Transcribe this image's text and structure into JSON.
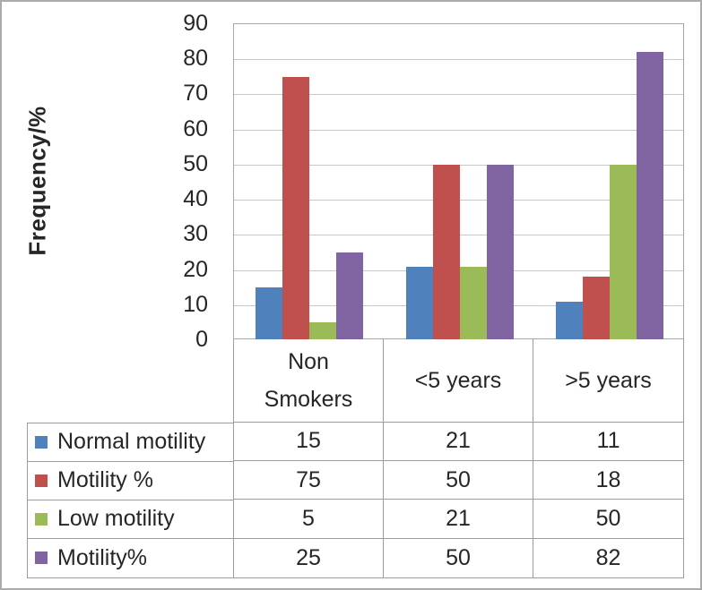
{
  "chart_data": {
    "type": "bar",
    "title": "",
    "xlabel": "",
    "ylabel": "Frequency/%",
    "categories": [
      "Non Smokers",
      "<5 years",
      ">5 years"
    ],
    "series": [
      {
        "name": "Normal motility",
        "color": "#4F81BD",
        "values": [
          15,
          21,
          11
        ]
      },
      {
        "name": "Motility %",
        "color": "#C0504D",
        "values": [
          75,
          50,
          18
        ]
      },
      {
        "name": "Low motility",
        "color": "#9BBB59",
        "values": [
          5,
          21,
          50
        ]
      },
      {
        "name": "Motility%",
        "color": "#8064A2",
        "values": [
          25,
          50,
          82
        ]
      }
    ],
    "ylim": [
      0,
      90
    ],
    "yticks": [
      0,
      10,
      20,
      30,
      40,
      50,
      60,
      70,
      80,
      90
    ],
    "grid": true,
    "legend_position": "data-table-left-column",
    "data_table_shown": true
  },
  "style": {
    "gridline_color": "#c8c8c8",
    "table_border_color": "#9c9c9c",
    "text_color": "#262626"
  }
}
